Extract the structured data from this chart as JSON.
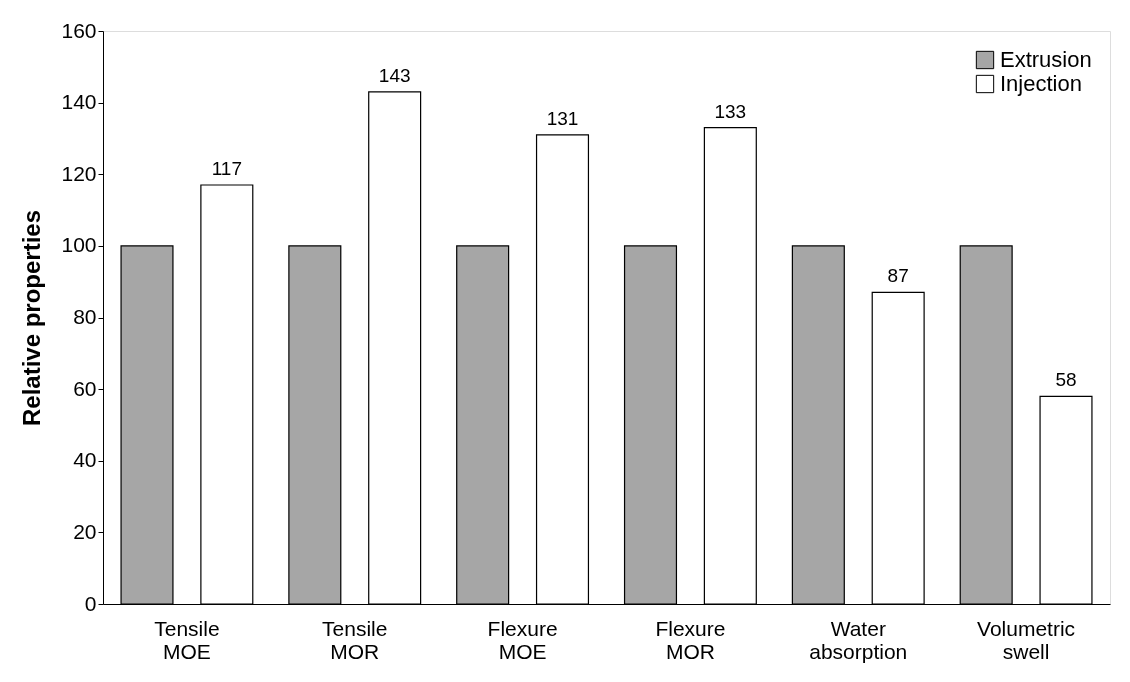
{
  "chart_data": {
    "type": "bar",
    "ylabel": "Relative properties",
    "categories": [
      "Tensile MOE",
      "Tensile MOR",
      "Flexure MOE",
      "Flexure MOR",
      "Water absorption",
      "Volumetric swell"
    ],
    "series": [
      {
        "name": "Extrusion",
        "color": "#a6a6a6",
        "values": [
          100,
          100,
          100,
          100,
          100,
          100
        ]
      },
      {
        "name": "Injection",
        "color": "#ffffff",
        "values": [
          117,
          143,
          131,
          133,
          87,
          58
        ],
        "value_labels": [
          "117",
          "143",
          "131",
          "133",
          "87",
          "58"
        ]
      }
    ],
    "ylim": [
      0,
      160
    ],
    "yticks": [
      0,
      20,
      40,
      60,
      80,
      100,
      120,
      140,
      160
    ],
    "grid": false,
    "legend": "top right"
  }
}
